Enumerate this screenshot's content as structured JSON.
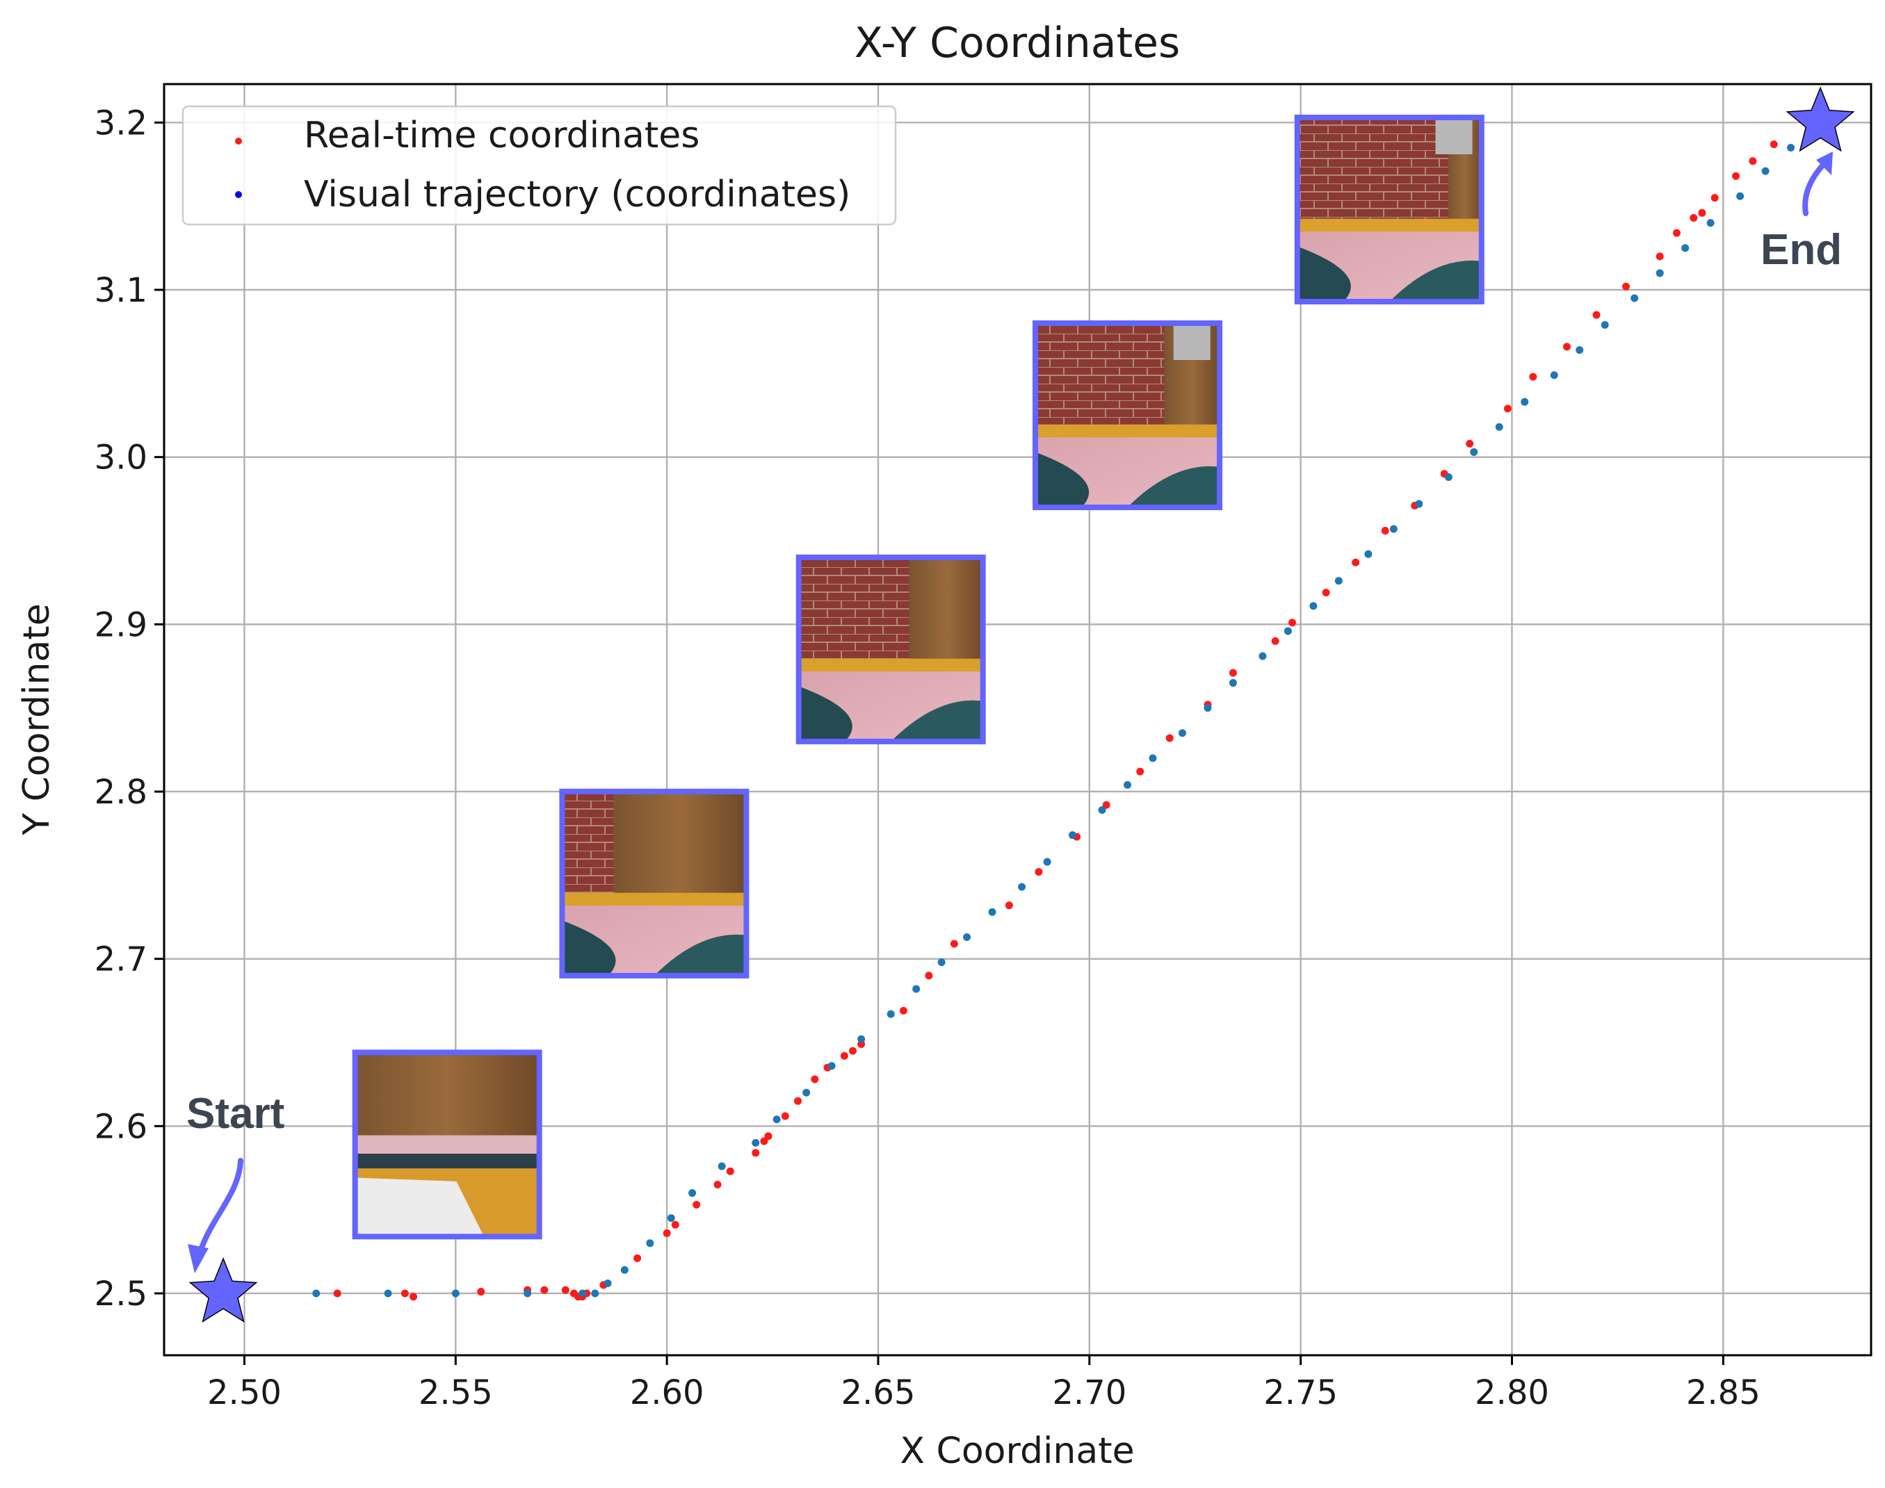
{
  "colors": {
    "real_time": "#ff1a1a",
    "visual": "#1f77b4",
    "legend_visual_marker": "#0000ff",
    "accent": "#6464ff",
    "annotation_text": "#3d4452"
  },
  "annotations": {
    "start": "Start",
    "end": "End",
    "marker_icon": "star-icon",
    "arrow_icon": "curved-arrow-icon"
  },
  "thumbnails": [
    {
      "scene": "wooden-crate-close",
      "x_center": 2.548,
      "y_center": 2.589
    },
    {
      "scene": "crate-and-brick-wall",
      "x_center": 2.597,
      "y_center": 2.745
    },
    {
      "scene": "brick-wall-crate-floor",
      "x_center": 2.653,
      "y_center": 2.885
    },
    {
      "scene": "brick-wall-corridor",
      "x_center": 2.709,
      "y_center": 3.025
    },
    {
      "scene": "brick-wall-far",
      "x_center": 2.771,
      "y_center": 3.148
    }
  ],
  "chart_data": {
    "type": "scatter",
    "title": "X-Y Coordinates",
    "xlabel": "X Coordinate",
    "ylabel": "Y Coordinate",
    "xlim": [
      2.481,
      2.885
    ],
    "ylim": [
      2.463,
      3.223
    ],
    "xticks": [
      "2.50",
      "2.55",
      "2.60",
      "2.65",
      "2.70",
      "2.75",
      "2.80",
      "2.85"
    ],
    "yticks": [
      "2.5",
      "2.6",
      "2.7",
      "2.8",
      "2.9",
      "3.0",
      "3.1",
      "3.2"
    ],
    "grid": true,
    "legend_position": "top-left",
    "series": [
      {
        "name": "Real-time coordinates",
        "points": [
          [
            2.522,
            2.5
          ],
          [
            2.538,
            2.5
          ],
          [
            2.54,
            2.498
          ],
          [
            2.556,
            2.501
          ],
          [
            2.567,
            2.502
          ],
          [
            2.571,
            2.502
          ],
          [
            2.576,
            2.502
          ],
          [
            2.578,
            2.5
          ],
          [
            2.579,
            2.498
          ],
          [
            2.58,
            2.498
          ],
          [
            2.581,
            2.5
          ],
          [
            2.585,
            2.505
          ],
          [
            2.593,
            2.521
          ],
          [
            2.6,
            2.536
          ],
          [
            2.602,
            2.541
          ],
          [
            2.607,
            2.553
          ],
          [
            2.612,
            2.565
          ],
          [
            2.615,
            2.573
          ],
          [
            2.621,
            2.584
          ],
          [
            2.623,
            2.591
          ],
          [
            2.624,
            2.594
          ],
          [
            2.628,
            2.606
          ],
          [
            2.631,
            2.615
          ],
          [
            2.635,
            2.628
          ],
          [
            2.638,
            2.635
          ],
          [
            2.642,
            2.642
          ],
          [
            2.644,
            2.645
          ],
          [
            2.646,
            2.649
          ],
          [
            2.656,
            2.669
          ],
          [
            2.662,
            2.69
          ],
          [
            2.668,
            2.709
          ],
          [
            2.681,
            2.732
          ],
          [
            2.688,
            2.752
          ],
          [
            2.697,
            2.773
          ],
          [
            2.704,
            2.792
          ],
          [
            2.712,
            2.812
          ],
          [
            2.719,
            2.832
          ],
          [
            2.728,
            2.852
          ],
          [
            2.734,
            2.871
          ],
          [
            2.744,
            2.89
          ],
          [
            2.748,
            2.901
          ],
          [
            2.756,
            2.919
          ],
          [
            2.763,
            2.937
          ],
          [
            2.77,
            2.956
          ],
          [
            2.777,
            2.971
          ],
          [
            2.784,
            2.99
          ],
          [
            2.79,
            3.008
          ],
          [
            2.799,
            3.029
          ],
          [
            2.805,
            3.048
          ],
          [
            2.813,
            3.066
          ],
          [
            2.82,
            3.085
          ],
          [
            2.827,
            3.102
          ],
          [
            2.835,
            3.12
          ],
          [
            2.839,
            3.134
          ],
          [
            2.843,
            3.143
          ],
          [
            2.845,
            3.146
          ],
          [
            2.848,
            3.155
          ],
          [
            2.853,
            3.168
          ],
          [
            2.857,
            3.177
          ],
          [
            2.862,
            3.187
          ]
        ]
      },
      {
        "name": "Visual trajectory (coordinates)",
        "points": [
          [
            2.517,
            2.5
          ],
          [
            2.534,
            2.5
          ],
          [
            2.55,
            2.5
          ],
          [
            2.567,
            2.5
          ],
          [
            2.58,
            2.5
          ],
          [
            2.583,
            2.5
          ],
          [
            2.586,
            2.506
          ],
          [
            2.59,
            2.514
          ],
          [
            2.596,
            2.53
          ],
          [
            2.601,
            2.545
          ],
          [
            2.606,
            2.56
          ],
          [
            2.613,
            2.576
          ],
          [
            2.621,
            2.59
          ],
          [
            2.626,
            2.604
          ],
          [
            2.633,
            2.62
          ],
          [
            2.639,
            2.636
          ],
          [
            2.646,
            2.652
          ],
          [
            2.653,
            2.667
          ],
          [
            2.659,
            2.682
          ],
          [
            2.665,
            2.698
          ],
          [
            2.671,
            2.713
          ],
          [
            2.677,
            2.728
          ],
          [
            2.684,
            2.743
          ],
          [
            2.69,
            2.758
          ],
          [
            2.696,
            2.774
          ],
          [
            2.703,
            2.789
          ],
          [
            2.709,
            2.804
          ],
          [
            2.715,
            2.82
          ],
          [
            2.722,
            2.835
          ],
          [
            2.728,
            2.85
          ],
          [
            2.734,
            2.865
          ],
          [
            2.741,
            2.881
          ],
          [
            2.747,
            2.896
          ],
          [
            2.753,
            2.911
          ],
          [
            2.759,
            2.926
          ],
          [
            2.766,
            2.942
          ],
          [
            2.772,
            2.957
          ],
          [
            2.778,
            2.972
          ],
          [
            2.785,
            2.988
          ],
          [
            2.791,
            3.003
          ],
          [
            2.797,
            3.018
          ],
          [
            2.803,
            3.033
          ],
          [
            2.81,
            3.049
          ],
          [
            2.816,
            3.064
          ],
          [
            2.822,
            3.079
          ],
          [
            2.829,
            3.095
          ],
          [
            2.835,
            3.11
          ],
          [
            2.841,
            3.125
          ],
          [
            2.847,
            3.14
          ],
          [
            2.854,
            3.156
          ],
          [
            2.86,
            3.171
          ],
          [
            2.866,
            3.185
          ]
        ]
      }
    ]
  }
}
